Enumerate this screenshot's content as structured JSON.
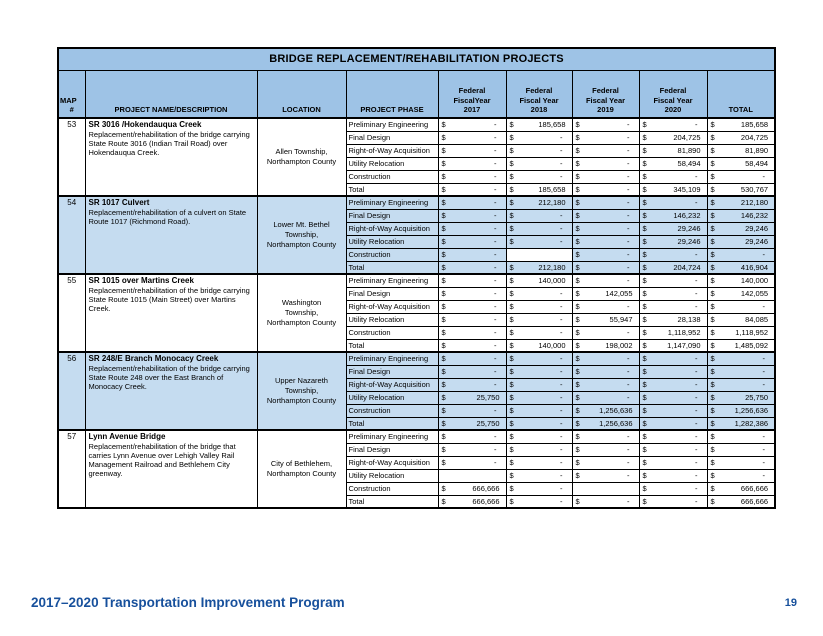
{
  "document": {
    "footer": "2017–2020 Transportation Improvement Program",
    "page_number": "19"
  },
  "colors": {
    "header_blue": "#9EC3E6",
    "row_highlight_blue": "#C5DCF0",
    "footer_navy": "#17509C"
  },
  "table": {
    "title": "BRIDGE REPLACEMENT/REHABILITATION PROJECTS",
    "currency_symbol": "$",
    "headers": {
      "map_line1": "MAP",
      "map_line2": "#",
      "project": "PROJECT NAME/DESCRIPTION",
      "location": "LOCATION",
      "phase": "PROJECT PHASE",
      "years": [
        {
          "l1": "Federal",
          "l2": "FiscalYear",
          "l3": "2017"
        },
        {
          "l1": "Federal",
          "l2": "Fiscal Year",
          "l3": "2018"
        },
        {
          "l1": "Federal",
          "l2": "Fiscal Year",
          "l3": "2019"
        },
        {
          "l1": "Federal",
          "l2": "Fiscal Year",
          "l3": "2020"
        }
      ],
      "total": "TOTAL"
    },
    "projects": [
      {
        "map": "53",
        "name": "SR 3016 /Hokendauqua Creek",
        "description": "Replacement/rehabilitation of the bridge carrying State Route 3016 (Indian Trail Road) over Hokendauqua Creek.",
        "location": "Allen Township, Northampton County",
        "highlight": false,
        "phases": [
          {
            "label": "Preliminary Engineering",
            "values": [
              "-",
              "185,658",
              "-",
              "-",
              "185,658"
            ]
          },
          {
            "label": "Final Design",
            "values": [
              "-",
              "-",
              "-",
              "204,725",
              "204,725"
            ]
          },
          {
            "label": "Right-of-Way Acquisition",
            "values": [
              "-",
              "-",
              "-",
              "81,890",
              "81,890"
            ]
          },
          {
            "label": "Utility Relocation",
            "values": [
              "-",
              "-",
              "-",
              "58,494",
              "58,494"
            ]
          },
          {
            "label": "Construction",
            "values": [
              "-",
              "-",
              "-",
              "-",
              "-"
            ]
          },
          {
            "label": "Total",
            "values": [
              "-",
              "185,658",
              "-",
              "345,109",
              "530,767"
            ]
          }
        ]
      },
      {
        "map": "54",
        "name": "SR 1017 Culvert",
        "description": "Replacement/rehabilitation of a culvert on State Route 1017 (Richmond Road).",
        "location": "Lower Mt. Bethel Township, Northampton County",
        "highlight": true,
        "phases": [
          {
            "label": "Preliminary Engineering",
            "values": [
              "-",
              "212,180",
              "-",
              "-",
              "212,180"
            ]
          },
          {
            "label": "Final Design",
            "values": [
              "-",
              "-",
              "-",
              "146,232",
              "146,232"
            ]
          },
          {
            "label": "Right-of-Way Acquisition",
            "values": [
              "-",
              "-",
              "-",
              "29,246",
              "29,246"
            ]
          },
          {
            "label": "Utility Relocation",
            "values": [
              "-",
              "-",
              "-",
              "29,246",
              "29,246"
            ]
          },
          {
            "label": "Construction",
            "values": [
              "-",
              null,
              "-",
              "-",
              "-"
            ]
          },
          {
            "label": "Total",
            "values": [
              "-",
              "212,180",
              "-",
              "204,724",
              "416,904"
            ]
          }
        ]
      },
      {
        "map": "55",
        "name": "SR 1015 over Martins Creek",
        "description": "Replacement/rehabilitation of the bridge carrying State Route 1015 (Main Street) over Martins Creek.",
        "location": "Washington Township, Northampton County",
        "highlight": false,
        "phases": [
          {
            "label": "Preliminary Engineering",
            "values": [
              "-",
              "140,000",
              "-",
              "-",
              "140,000"
            ]
          },
          {
            "label": "Final Design",
            "values": [
              "-",
              "-",
              "142,055",
              "-",
              "142,055"
            ]
          },
          {
            "label": "Right-of-Way Acquisition",
            "values": [
              "-",
              "-",
              "-",
              "-",
              "-"
            ]
          },
          {
            "label": "Utility Relocation",
            "values": [
              "-",
              "-",
              "55,947",
              "28,138",
              "84,085"
            ]
          },
          {
            "label": "Construction",
            "values": [
              "-",
              "-",
              "-",
              "1,118,952",
              "1,118,952"
            ]
          },
          {
            "label": "Total",
            "values": [
              "-",
              "140,000",
              "198,002",
              "1,147,090",
              "1,485,092"
            ]
          }
        ]
      },
      {
        "map": "56",
        "name": "SR 248/E Branch Monocacy Creek",
        "description": "Replacement/rehabilitation of the bridge carrying State Route 248 over the East Branch of Monocacy Creek.",
        "location": "Upper Nazareth Township, Northampton County",
        "highlight": true,
        "phases": [
          {
            "label": "Preliminary Engineering",
            "values": [
              "-",
              "-",
              "-",
              "-",
              "-"
            ]
          },
          {
            "label": "Final Design",
            "values": [
              "-",
              "-",
              "-",
              "-",
              "-"
            ]
          },
          {
            "label": "Right-of-Way Acquisition",
            "values": [
              "-",
              "-",
              "-",
              "-",
              "-"
            ]
          },
          {
            "label": "Utility Relocation",
            "values": [
              "25,750",
              "-",
              "-",
              "-",
              "25,750"
            ]
          },
          {
            "label": "Construction",
            "values": [
              "-",
              "-",
              "1,256,636",
              "-",
              "1,256,636"
            ]
          },
          {
            "label": "Total",
            "values": [
              "25,750",
              "-",
              "1,256,636",
              "-",
              "1,282,386"
            ]
          }
        ]
      },
      {
        "map": "57",
        "name": "Lynn Avenue Bridge",
        "description": "Replacement/rehabilitation of the bridge that carries Lynn Avenue over Lehigh Valley Rail Management Railroad and Bethlehem City greenway.",
        "location": "City of Bethlehem, Northampton County",
        "highlight": false,
        "phases": [
          {
            "label": "Preliminary Engineering",
            "values": [
              "-",
              "-",
              "-",
              "-",
              "-"
            ]
          },
          {
            "label": "Final Design",
            "values": [
              "-",
              "-",
              "-",
              "-",
              "-"
            ]
          },
          {
            "label": "Right-of-Way Acquisition",
            "values": [
              "-",
              "-",
              "-",
              "-",
              "-"
            ]
          },
          {
            "label": "Utility Relocation",
            "values": [
              null,
              "-",
              "-",
              "-",
              "-"
            ]
          },
          {
            "label": "Construction",
            "values": [
              "666,666",
              "-",
              null,
              "-",
              "666,666"
            ]
          },
          {
            "label": "Total",
            "values": [
              "666,666",
              "-",
              "-",
              "-",
              "666,666"
            ]
          }
        ]
      }
    ]
  }
}
